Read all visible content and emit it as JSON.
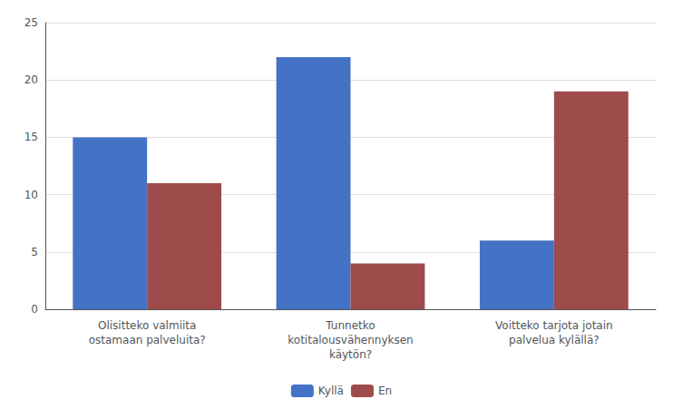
{
  "chart_data": {
    "type": "bar",
    "categories": [
      "Olisitteko valmiita\nostamaan palveluita?",
      "Tunnetko\nkotitalousvähennyksen\nkäytön?",
      "Voitteko tarjota jotain\npalvelua kylällä?"
    ],
    "series": [
      {
        "name": "Kyllä",
        "color": "#4472C4",
        "values": [
          15,
          22,
          6
        ]
      },
      {
        "name": "En",
        "color": "#9E4B4B",
        "values": [
          11,
          4,
          19
        ]
      }
    ],
    "ylim": [
      0,
      25
    ],
    "yticks": [
      0,
      5,
      10,
      15,
      20,
      25
    ],
    "grid": true,
    "legend": "bottom"
  }
}
